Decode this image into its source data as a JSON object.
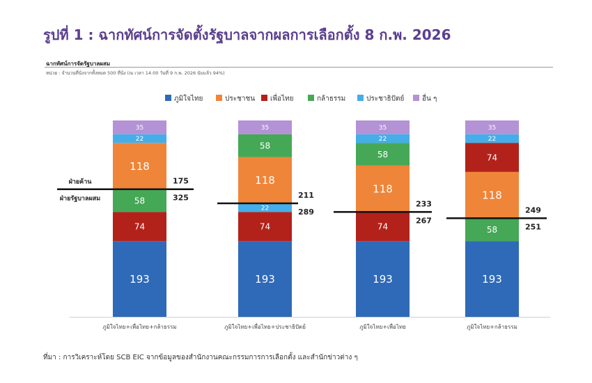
{
  "figure_title": "รูปที่ 1 : ฉากทัศน์การจัดตั้งรัฐบาลจากผลการเลือกตั้ง 8 ก.พ. 2026",
  "source": "ที่มา : การวิเคราะห์โดย SCB EIC จากข้อมูลของสำนักงานคณะกรรมการการเลือกตั้ง และสำนักข่าวต่าง ๆ",
  "chart_data": {
    "type": "bar",
    "stacked": true,
    "title": "ฉากทัศน์การจัดรัฐบาลผสม",
    "subtitle": "หน่วย : จำนวนที่นั่งจากทั้งหมด 500 ที่นั่ง (ณ เวลา 14:00 วันที่ 9 ก.พ. 2026 นับแล้ว 94%)",
    "legend_position": "top",
    "ylim": [
      0,
      500
    ],
    "grid": false,
    "parties": [
      {
        "name": "ภูมิใจไทย",
        "color": "#2f6ab8"
      },
      {
        "name": "ประชาชน",
        "color": "#ef8539"
      },
      {
        "name": "เพื่อไทย",
        "color": "#b2221b"
      },
      {
        "name": "กล้าธรรม",
        "color": "#45a857"
      },
      {
        "name": "ประชาธิปัตย์",
        "color": "#45aee8"
      },
      {
        "name": "อื่น ๆ",
        "color": "#b392d6"
      }
    ],
    "categories": [
      "ภูมิใจไทย+เพื่อไทย+กล้าธรรม",
      "ภูมิใจไทย+เพื่อไทย+ประชาธิปัตย์",
      "ภูมิใจไทย+เพื่อไทย",
      "ภูมิใจไทย+กล้าธรรม"
    ],
    "stacks": [
      {
        "segments": [
          {
            "party": "ภูมิใจไทย",
            "value": 193
          },
          {
            "party": "เพื่อไทย",
            "value": 74
          },
          {
            "party": "กล้าธรรม",
            "value": 58
          },
          {
            "party": "ประชาชน",
            "value": 118
          },
          {
            "party": "ประชาธิปัตย์",
            "value": 22
          },
          {
            "party": "อื่น ๆ",
            "value": 35
          }
        ],
        "government": 325,
        "opposition": 175
      },
      {
        "segments": [
          {
            "party": "ภูมิใจไทย",
            "value": 193
          },
          {
            "party": "เพื่อไทย",
            "value": 74
          },
          {
            "party": "ประชาธิปัตย์",
            "value": 22
          },
          {
            "party": "ประชาชน",
            "value": 118
          },
          {
            "party": "กล้าธรรม",
            "value": 58
          },
          {
            "party": "อื่น ๆ",
            "value": 35
          }
        ],
        "government": 289,
        "opposition": 211
      },
      {
        "segments": [
          {
            "party": "ภูมิใจไทย",
            "value": 193
          },
          {
            "party": "เพื่อไทย",
            "value": 74
          },
          {
            "party": "ประชาชน",
            "value": 118
          },
          {
            "party": "กล้าธรรม",
            "value": 58
          },
          {
            "party": "ประชาธิปัตย์",
            "value": 22
          },
          {
            "party": "อื่น ๆ",
            "value": 35
          }
        ],
        "government": 267,
        "opposition": 233
      },
      {
        "segments": [
          {
            "party": "ภูมิใจไทย",
            "value": 193
          },
          {
            "party": "กล้าธรรม",
            "value": 58
          },
          {
            "party": "ประชาชน",
            "value": 118
          },
          {
            "party": "เพื่อไทย",
            "value": 74
          },
          {
            "party": "ประชาธิปัตย์",
            "value": 22
          },
          {
            "party": "อื่น ๆ",
            "value": 35
          }
        ],
        "government": 251,
        "opposition": 249
      }
    ],
    "annotations": {
      "opposition_label": "ฝ่ายค้าน",
      "government_label": "ฝ่ายรัฐบาลผสม"
    }
  }
}
